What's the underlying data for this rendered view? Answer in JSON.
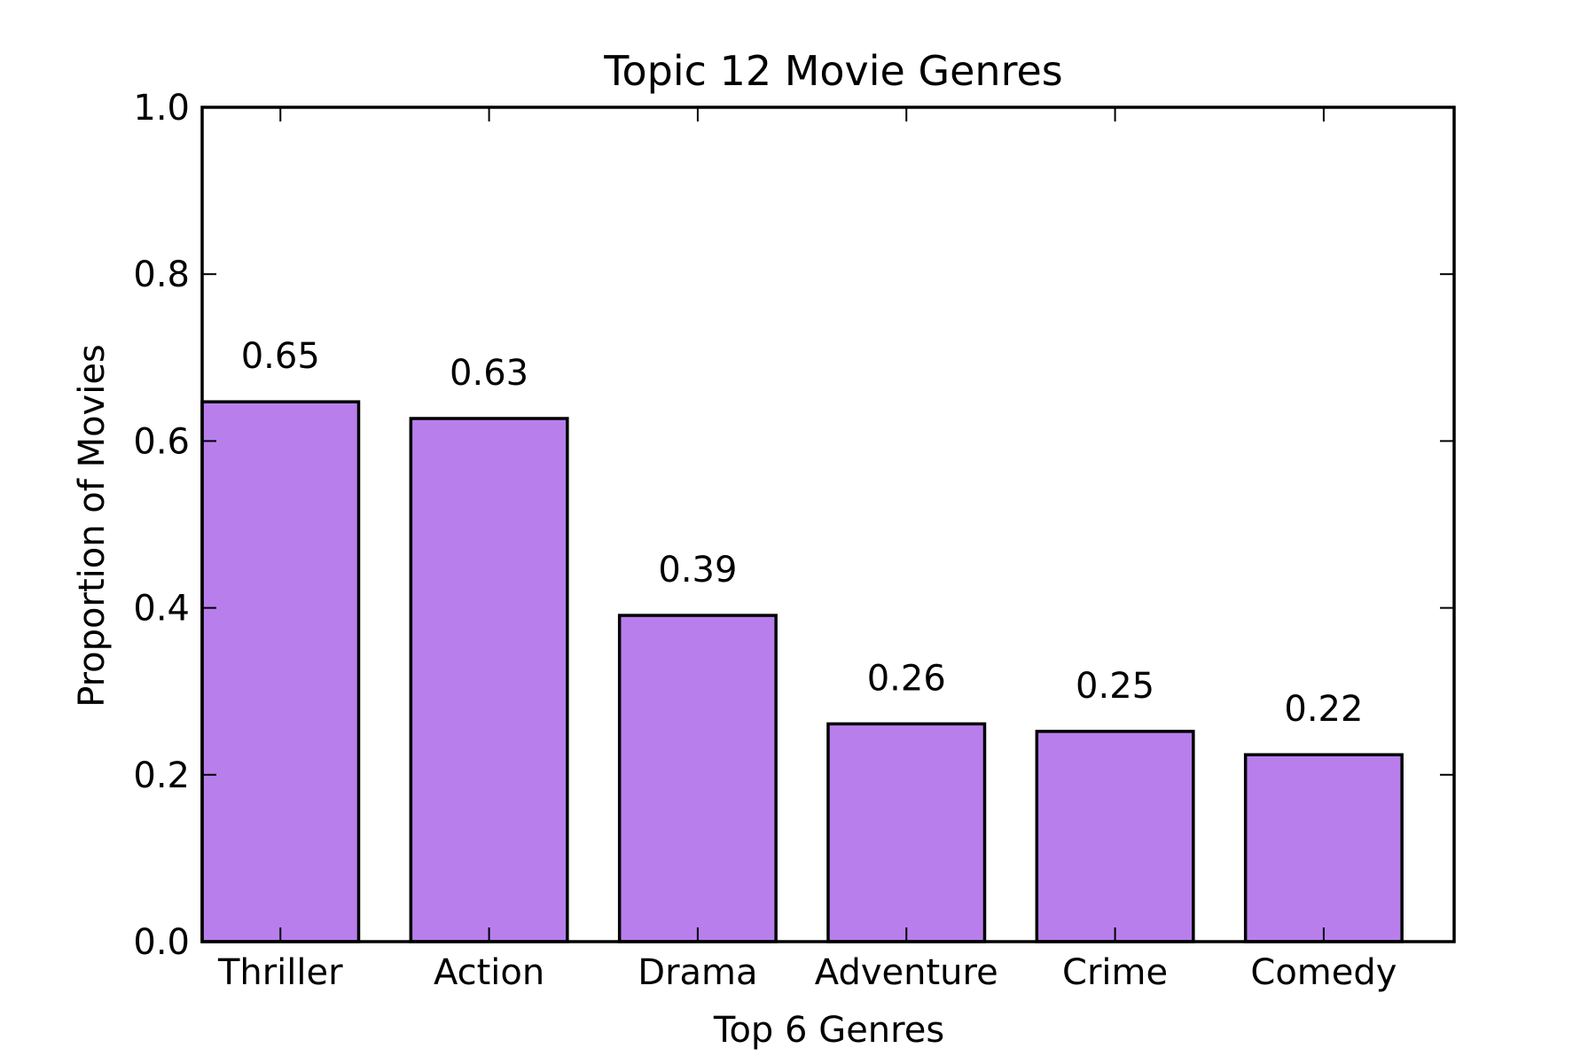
{
  "chart_data": {
    "type": "bar",
    "title": "Topic 12 Movie Genres",
    "xlabel": "Top 6 Genres",
    "ylabel": "Proportion of Movies",
    "categories": [
      "Thriller",
      "Action",
      "Drama",
      "Adventure",
      "Crime",
      "Comedy"
    ],
    "values": [
      0.647,
      0.627,
      0.391,
      0.261,
      0.252,
      0.224
    ],
    "value_labels": [
      "0.65",
      "0.63",
      "0.39",
      "0.26",
      "0.25",
      "0.22"
    ],
    "ylim": [
      0,
      1.0
    ],
    "yticks": [
      0.0,
      0.2,
      0.4,
      0.6,
      0.8,
      1.0
    ],
    "ytick_labels": [
      "0.0",
      "0.2",
      "0.4",
      "0.6",
      "0.8",
      "1.0"
    ],
    "grid": false,
    "bar_color": "#b87fec",
    "edge_color": "#000000"
  }
}
